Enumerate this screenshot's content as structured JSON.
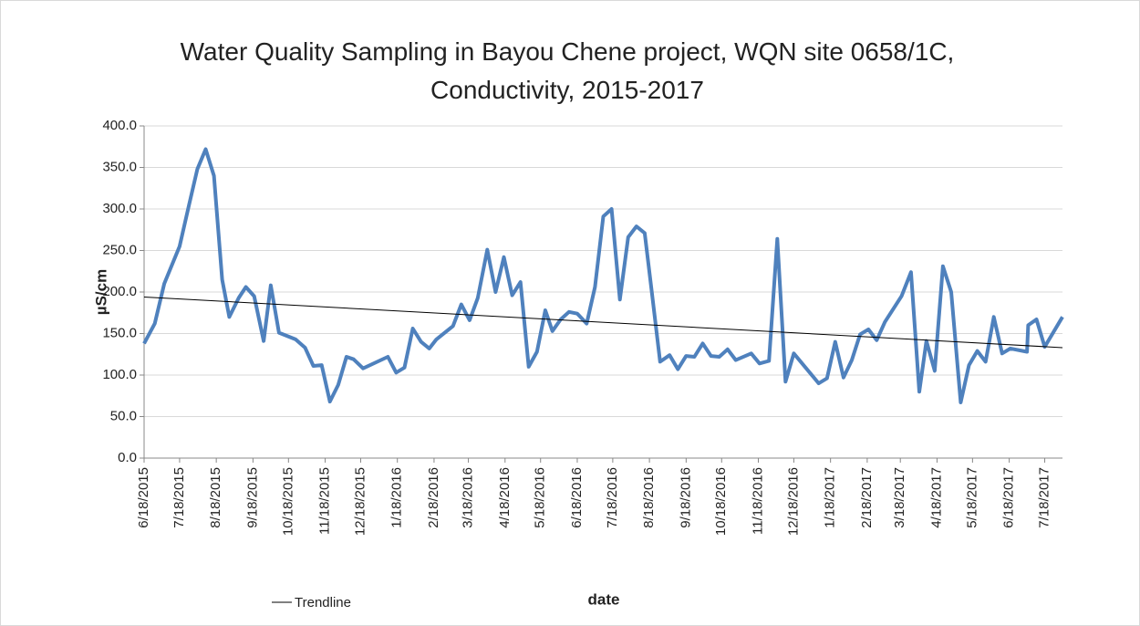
{
  "chart_data": {
    "type": "line",
    "title": "Water Quality Sampling in Bayou Chene project, WQN site 0658/1C, Conductivity, 2015-2017",
    "x_label": "date",
    "y_label": "µS/cm",
    "color": "#4f81bd",
    "x": [
      "6/18/2015",
      "6/27/2015",
      "7/5/2015",
      "7/18/2015",
      "7/26/2015",
      "8/2/2015",
      "8/9/2015",
      "8/16/2015",
      "8/23/2015",
      "8/29/2015",
      "9/6/2015",
      "9/12/2015",
      "9/19/2015",
      "9/27/2015",
      "10/3/2015",
      "10/10/2015",
      "10/24/2015",
      "11/1/2015",
      "11/8/2015",
      "11/15/2015",
      "11/22/2015",
      "11/29/2015",
      "12/6/2015",
      "12/12/2015",
      "12/20/2015",
      "1/10/2016",
      "1/17/2016",
      "1/24/2016",
      "1/31/2016",
      "2/7/2016",
      "2/14/2016",
      "2/20/2016",
      "3/5/2016",
      "3/12/2016",
      "3/19/2016",
      "3/26/2016",
      "4/3/2016",
      "4/10/2016",
      "4/17/2016",
      "4/24/2016",
      "5/1/2016",
      "5/8/2016",
      "5/15/2016",
      "5/22/2016",
      "5/28/2016",
      "6/4/2016",
      "6/11/2016",
      "6/18/2016",
      "6/26/2016",
      "7/3/2016",
      "7/10/2016",
      "7/17/2016",
      "7/24/2016",
      "7/31/2016",
      "8/7/2016",
      "8/14/2016",
      "8/20/2016",
      "8/27/2016",
      "9/4/2016",
      "9/11/2016",
      "9/18/2016",
      "9/25/2016",
      "10/2/2016",
      "10/9/2016",
      "10/16/2016",
      "10/23/2016",
      "10/30/2016",
      "11/12/2016",
      "11/19/2016",
      "11/27/2016",
      "12/4/2016",
      "12/11/2016",
      "12/18/2016",
      "1/8/2017",
      "1/15/2017",
      "1/22/2017",
      "1/29/2017",
      "2/5/2017",
      "2/12/2017",
      "2/19/2017",
      "2/26/2017",
      "3/5/2017",
      "3/19/2017",
      "3/27/2017",
      "4/3/2017",
      "4/9/2017",
      "4/16/2017",
      "4/23/2017",
      "4/30/2017",
      "5/8/2017",
      "5/15/2017",
      "5/22/2017",
      "5/29/2017",
      "6/5/2017",
      "6/12/2017",
      "6/19/2017",
      "7/3/2017",
      "7/4/2017",
      "7/11/2017",
      "7/18/2017",
      "8/2/2017"
    ],
    "values": [
      138,
      162,
      210,
      255,
      305,
      348,
      372,
      340,
      215,
      170,
      193,
      206,
      195,
      141,
      208,
      151,
      143,
      133,
      111,
      112,
      68,
      88,
      122,
      119,
      108,
      122,
      103,
      109,
      156,
      140,
      132,
      143,
      159,
      185,
      166,
      193,
      251,
      200,
      242,
      196,
      212,
      110,
      128,
      178,
      153,
      167,
      176,
      174,
      162,
      206,
      291,
      300,
      191,
      266,
      279,
      271,
      200,
      116,
      124,
      107,
      123,
      122,
      138,
      123,
      122,
      131,
      118,
      126,
      114,
      117,
      264,
      92,
      126,
      90,
      96,
      140,
      97,
      118,
      149,
      155,
      142,
      164,
      195,
      224,
      80,
      141,
      105,
      231,
      200,
      67,
      112,
      129,
      116,
      170,
      126,
      132,
      128,
      160,
      167,
      134,
      170
    ],
    "trendline": {
      "name": "Trendline",
      "color": "#000000",
      "x": [
        "6/18/2015",
        "8/2/2017"
      ],
      "values": [
        194,
        133
      ]
    },
    "xlim": [
      "6/18/2015",
      "8/2/2017"
    ],
    "xticks": [
      "6/18/2015",
      "7/18/2015",
      "8/18/2015",
      "9/18/2015",
      "10/18/2015",
      "11/18/2015",
      "12/18/2015",
      "1/18/2016",
      "2/18/2016",
      "3/18/2016",
      "4/18/2016",
      "5/18/2016",
      "6/18/2016",
      "7/18/2016",
      "8/18/2016",
      "9/18/2016",
      "10/18/2016",
      "11/18/2016",
      "12/18/2016",
      "1/18/2017",
      "2/18/2017",
      "3/18/2017",
      "4/18/2017",
      "5/18/2017",
      "6/18/2017",
      "7/18/2017"
    ],
    "ylim": [
      0,
      400
    ],
    "yticks": [
      {
        "value": 0,
        "label": "0.0"
      },
      {
        "value": 50,
        "label": "50.0"
      },
      {
        "value": 100,
        "label": "100.0"
      },
      {
        "value": 150,
        "label": "150.0"
      },
      {
        "value": 200,
        "label": "200.0"
      },
      {
        "value": 250,
        "label": "250.0"
      },
      {
        "value": 300,
        "label": "300.0"
      },
      {
        "value": 350,
        "label": "350.0"
      },
      {
        "value": 400,
        "label": "400.0"
      }
    ],
    "grid": true
  }
}
